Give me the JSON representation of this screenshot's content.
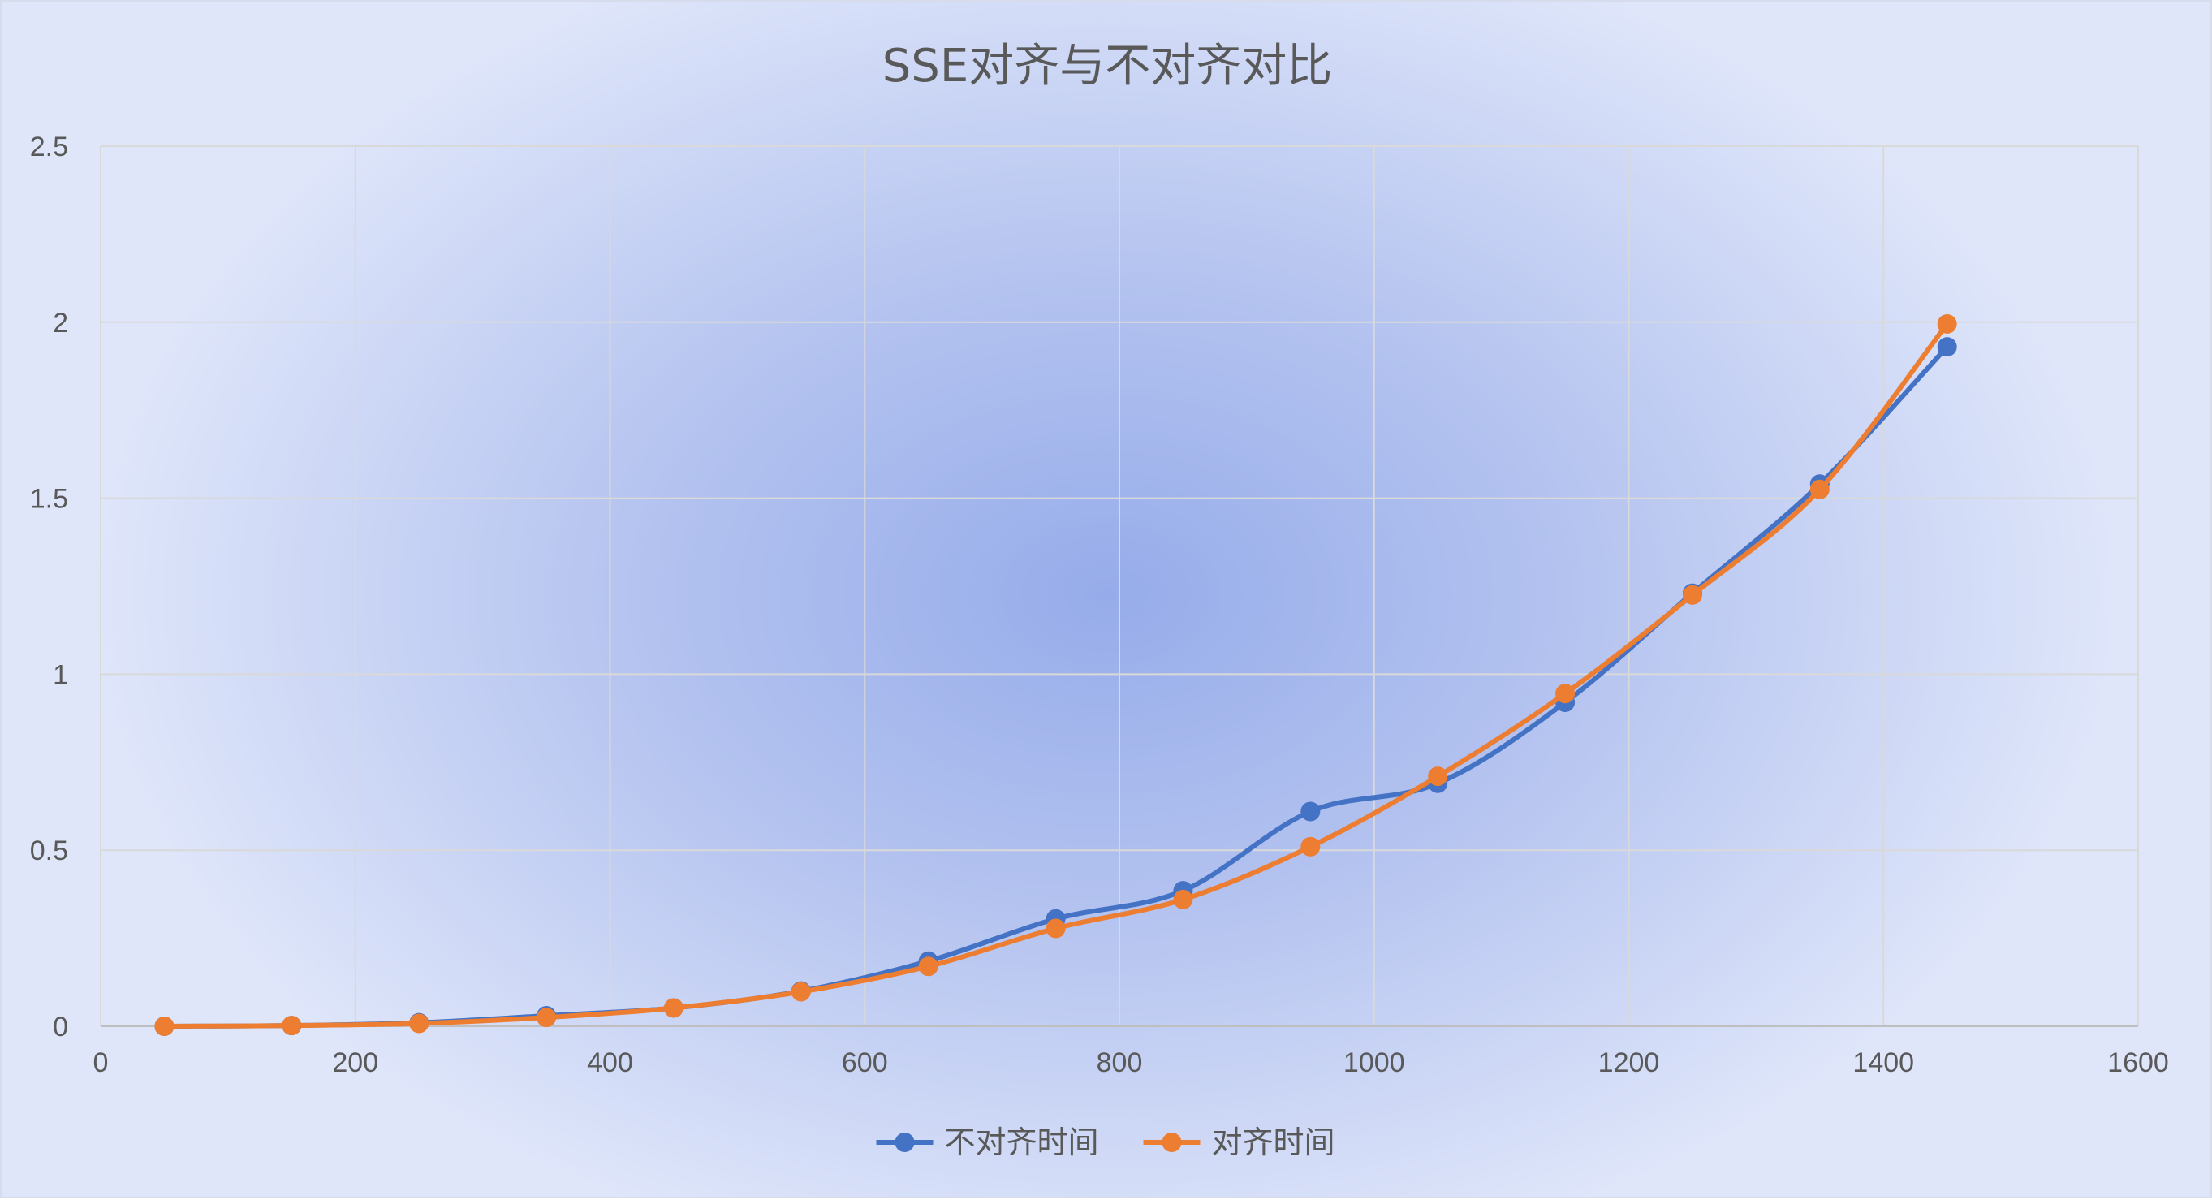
{
  "chart_data": {
    "type": "line",
    "title": "SSE对齐与不对齐对比",
    "xlabel": "",
    "ylabel": "",
    "xlim": [
      0,
      1600
    ],
    "ylim": [
      0,
      2.5
    ],
    "x_ticks": [
      "0",
      "200",
      "400",
      "600",
      "800",
      "1000",
      "1200",
      "1400",
      "1600"
    ],
    "y_ticks": [
      "0",
      "0.5",
      "1",
      "1.5",
      "2",
      "2.5"
    ],
    "grid": true,
    "smooth": true,
    "legend_position": "bottom",
    "x": [
      50,
      150,
      250,
      350,
      450,
      550,
      650,
      750,
      850,
      950,
      1050,
      1150,
      1250,
      1350,
      1450
    ],
    "series": [
      {
        "name": "不对齐时间",
        "color": "#4472c4",
        "values": [
          0.0,
          0.002,
          0.01,
          0.03,
          0.052,
          0.1,
          0.185,
          0.305,
          0.385,
          0.61,
          0.69,
          0.92,
          1.23,
          1.54,
          1.93
        ]
      },
      {
        "name": "对齐时间",
        "color": "#ed7d31",
        "values": [
          0.0,
          0.002,
          0.008,
          0.025,
          0.052,
          0.098,
          0.17,
          0.278,
          0.36,
          0.51,
          0.71,
          0.945,
          1.225,
          1.525,
          1.995
        ]
      }
    ]
  }
}
